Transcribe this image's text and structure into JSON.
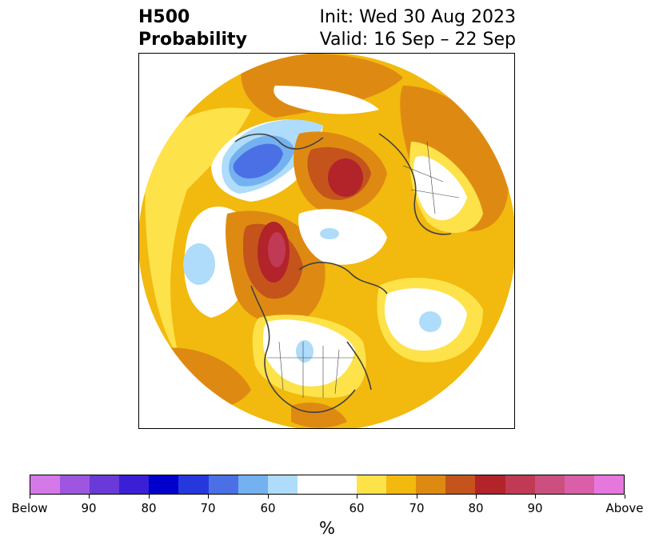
{
  "title": {
    "left_line1": "H500",
    "left_line2": "Probability",
    "right_line1": "Init: Wed 30 Aug 2023",
    "right_line2": "Valid: 16 Sep – 22 Sep"
  },
  "map": {
    "projection": "north-polar-stereographic",
    "colors": {
      "blue_light": "#aedcfa",
      "blue_mid": "#74b1f0",
      "blue_strong": "#4b70e6",
      "yellow": "#fde24a",
      "gold": "#f2b90e",
      "orange": "#de8a12",
      "rust": "#c4541b",
      "red": "#b2232a",
      "crimson": "#c13a55",
      "border": "#404040"
    }
  },
  "colorbar": {
    "segments": [
      "#d578e8",
      "#9e56e0",
      "#6a3ad8",
      "#3a1fd6",
      "#0000cc",
      "#2638dd",
      "#4b70e6",
      "#74b1f0",
      "#aedcfa",
      "#ffffff",
      "#fde24a",
      "#f2b90e",
      "#de8a12",
      "#c4541b",
      "#b2232a",
      "#c13a55",
      "#cc507f",
      "#da5ea8",
      "#e677dd"
    ],
    "tick_labels": [
      "Below",
      "90",
      "80",
      "70",
      "60",
      "60",
      "70",
      "80",
      "90",
      "Above"
    ],
    "unit_label": "%"
  }
}
